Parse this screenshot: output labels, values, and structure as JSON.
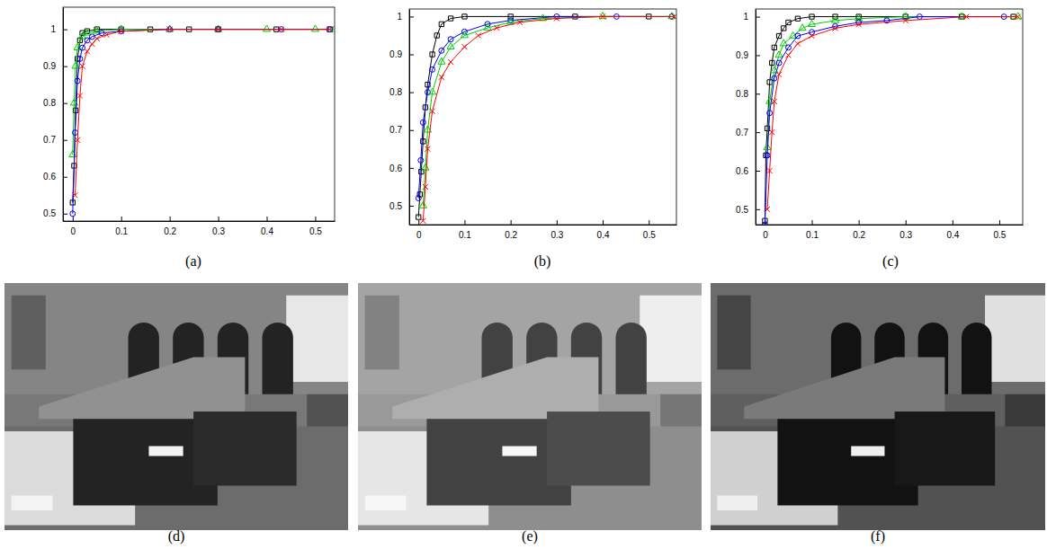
{
  "chart_data": [
    {
      "type": "line",
      "title": "(a)",
      "xlim": [
        -0.02,
        0.54
      ],
      "ylim": [
        0.48,
        1.06
      ],
      "xticks": [
        0,
        0.1,
        0.2,
        0.3,
        0.4,
        0.5
      ],
      "yticks": [
        0.5,
        0.6,
        0.7,
        0.8,
        0.9,
        1
      ],
      "series": [
        {
          "color": "#000000",
          "marker": "square",
          "line_style": "solid",
          "x": [
            0,
            0.003,
            0.006,
            0.01,
            0.015,
            0.02,
            0.03,
            0.05,
            0.1,
            0.16,
            0.24,
            0.3,
            0.42,
            0.53
          ],
          "values": [
            0.53,
            0.63,
            0.78,
            0.92,
            0.97,
            0.99,
            0.995,
            1,
            1,
            1,
            1,
            1,
            1,
            1
          ]
        },
        {
          "color": "#00cc00",
          "marker": "triangle",
          "line_style": "solid",
          "x": [
            0,
            0.003,
            0.006,
            0.01,
            0.02,
            0.03,
            0.05,
            0.1,
            0.2,
            0.3,
            0.4,
            0.5,
            0.54
          ],
          "values": [
            0.66,
            0.8,
            0.9,
            0.95,
            0.98,
            0.99,
            0.995,
            1,
            1,
            1,
            1,
            1,
            1
          ]
        },
        {
          "color": "#0000ff",
          "marker": "circle",
          "line_style": "solid",
          "x": [
            0,
            0.005,
            0.01,
            0.015,
            0.02,
            0.03,
            0.04,
            0.06,
            0.1,
            0.2,
            0.3,
            0.43,
            0.53
          ],
          "values": [
            0.5,
            0.72,
            0.86,
            0.92,
            0.95,
            0.97,
            0.98,
            0.99,
            0.995,
            1,
            1,
            1,
            1
          ]
        },
        {
          "color": "#ff0000",
          "marker": "x",
          "line_style": "solid",
          "x": [
            0.005,
            0.01,
            0.015,
            0.02,
            0.03,
            0.04,
            0.05,
            0.07,
            0.1,
            0.2,
            0.3,
            0.43,
            0.53
          ],
          "values": [
            0.55,
            0.7,
            0.82,
            0.9,
            0.94,
            0.96,
            0.975,
            0.985,
            0.995,
            1,
            1,
            1,
            1
          ]
        }
      ]
    },
    {
      "type": "line",
      "title": "(b)",
      "xlim": [
        -0.02,
        0.56
      ],
      "ylim": [
        0.45,
        1.02
      ],
      "xticks": [
        0,
        0.1,
        0.2,
        0.3,
        0.4,
        0.5
      ],
      "yticks": [
        0.5,
        0.6,
        0.7,
        0.8,
        0.9,
        1
      ],
      "series": [
        {
          "color": "#000000",
          "marker": "square",
          "line_style": "solid",
          "x": [
            0,
            0.003,
            0.006,
            0.01,
            0.015,
            0.02,
            0.03,
            0.04,
            0.05,
            0.07,
            0.1,
            0.2,
            0.34,
            0.5
          ],
          "values": [
            0.47,
            0.53,
            0.59,
            0.67,
            0.76,
            0.82,
            0.9,
            0.95,
            0.98,
            0.995,
            1,
            1,
            1,
            1
          ]
        },
        {
          "color": "#0000ff",
          "marker": "circle",
          "line_style": "solid",
          "x": [
            0,
            0.005,
            0.01,
            0.02,
            0.03,
            0.05,
            0.07,
            0.1,
            0.15,
            0.2,
            0.3,
            0.43,
            0.55
          ],
          "values": [
            0.52,
            0.62,
            0.72,
            0.8,
            0.86,
            0.91,
            0.94,
            0.96,
            0.98,
            0.99,
            1,
            1,
            1
          ]
        },
        {
          "color": "#00cc00",
          "marker": "triangle",
          "line_style": "solid",
          "x": [
            0.01,
            0.015,
            0.02,
            0.03,
            0.05,
            0.07,
            0.1,
            0.15,
            0.2,
            0.27,
            0.4,
            0.55
          ],
          "values": [
            0.5,
            0.6,
            0.7,
            0.8,
            0.88,
            0.92,
            0.95,
            0.97,
            0.985,
            0.995,
            1,
            1
          ]
        },
        {
          "color": "#ff0000",
          "marker": "x",
          "line_style": "solid",
          "x": [
            0.01,
            0.015,
            0.02,
            0.03,
            0.05,
            0.07,
            0.1,
            0.13,
            0.17,
            0.22,
            0.3,
            0.4,
            0.555
          ],
          "values": [
            0.46,
            0.55,
            0.65,
            0.75,
            0.84,
            0.88,
            0.92,
            0.95,
            0.97,
            0.985,
            0.995,
            1,
            1
          ]
        }
      ]
    },
    {
      "type": "line",
      "title": "(c)",
      "xlim": [
        -0.02,
        0.55
      ],
      "ylim": [
        0.46,
        1.02
      ],
      "xticks": [
        0,
        0.1,
        0.2,
        0.3,
        0.4,
        0.5
      ],
      "yticks": [
        0.5,
        0.6,
        0.7,
        0.8,
        0.9,
        1
      ],
      "series": [
        {
          "color": "#000000",
          "marker": "square",
          "line_style": "solid",
          "x": [
            0,
            0.002,
            0.005,
            0.01,
            0.015,
            0.02,
            0.03,
            0.04,
            0.05,
            0.07,
            0.1,
            0.15,
            0.2,
            0.3,
            0.42,
            0.53
          ],
          "values": [
            0.47,
            0.64,
            0.71,
            0.83,
            0.88,
            0.92,
            0.95,
            0.97,
            0.985,
            0.995,
            1,
            1,
            1,
            1,
            1,
            1
          ]
        },
        {
          "color": "#00cc00",
          "marker": "triangle",
          "line_style": "solid",
          "x": [
            0.005,
            0.01,
            0.02,
            0.03,
            0.04,
            0.06,
            0.08,
            0.1,
            0.15,
            0.2,
            0.3,
            0.42,
            0.54
          ],
          "values": [
            0.66,
            0.78,
            0.86,
            0.9,
            0.93,
            0.95,
            0.97,
            0.98,
            0.99,
            0.995,
            1,
            1,
            1
          ]
        },
        {
          "color": "#0000ff",
          "marker": "circle",
          "line_style": "solid",
          "x": [
            0,
            0.005,
            0.01,
            0.02,
            0.03,
            0.05,
            0.07,
            0.1,
            0.15,
            0.2,
            0.26,
            0.33,
            0.51
          ],
          "values": [
            0.46,
            0.64,
            0.75,
            0.84,
            0.88,
            0.92,
            0.95,
            0.96,
            0.975,
            0.985,
            0.99,
            1,
            1
          ]
        },
        {
          "color": "#ff0000",
          "marker": "x",
          "line_style": "solid",
          "x": [
            0.005,
            0.01,
            0.015,
            0.02,
            0.03,
            0.05,
            0.07,
            0.1,
            0.15,
            0.2,
            0.3,
            0.43,
            0.54
          ],
          "values": [
            0.5,
            0.6,
            0.7,
            0.78,
            0.85,
            0.9,
            0.93,
            0.95,
            0.97,
            0.98,
            0.99,
            1,
            1
          ]
        }
      ]
    }
  ],
  "images": [
    {
      "caption": "(d)"
    },
    {
      "caption": "(e)"
    },
    {
      "caption": "(f)"
    }
  ]
}
